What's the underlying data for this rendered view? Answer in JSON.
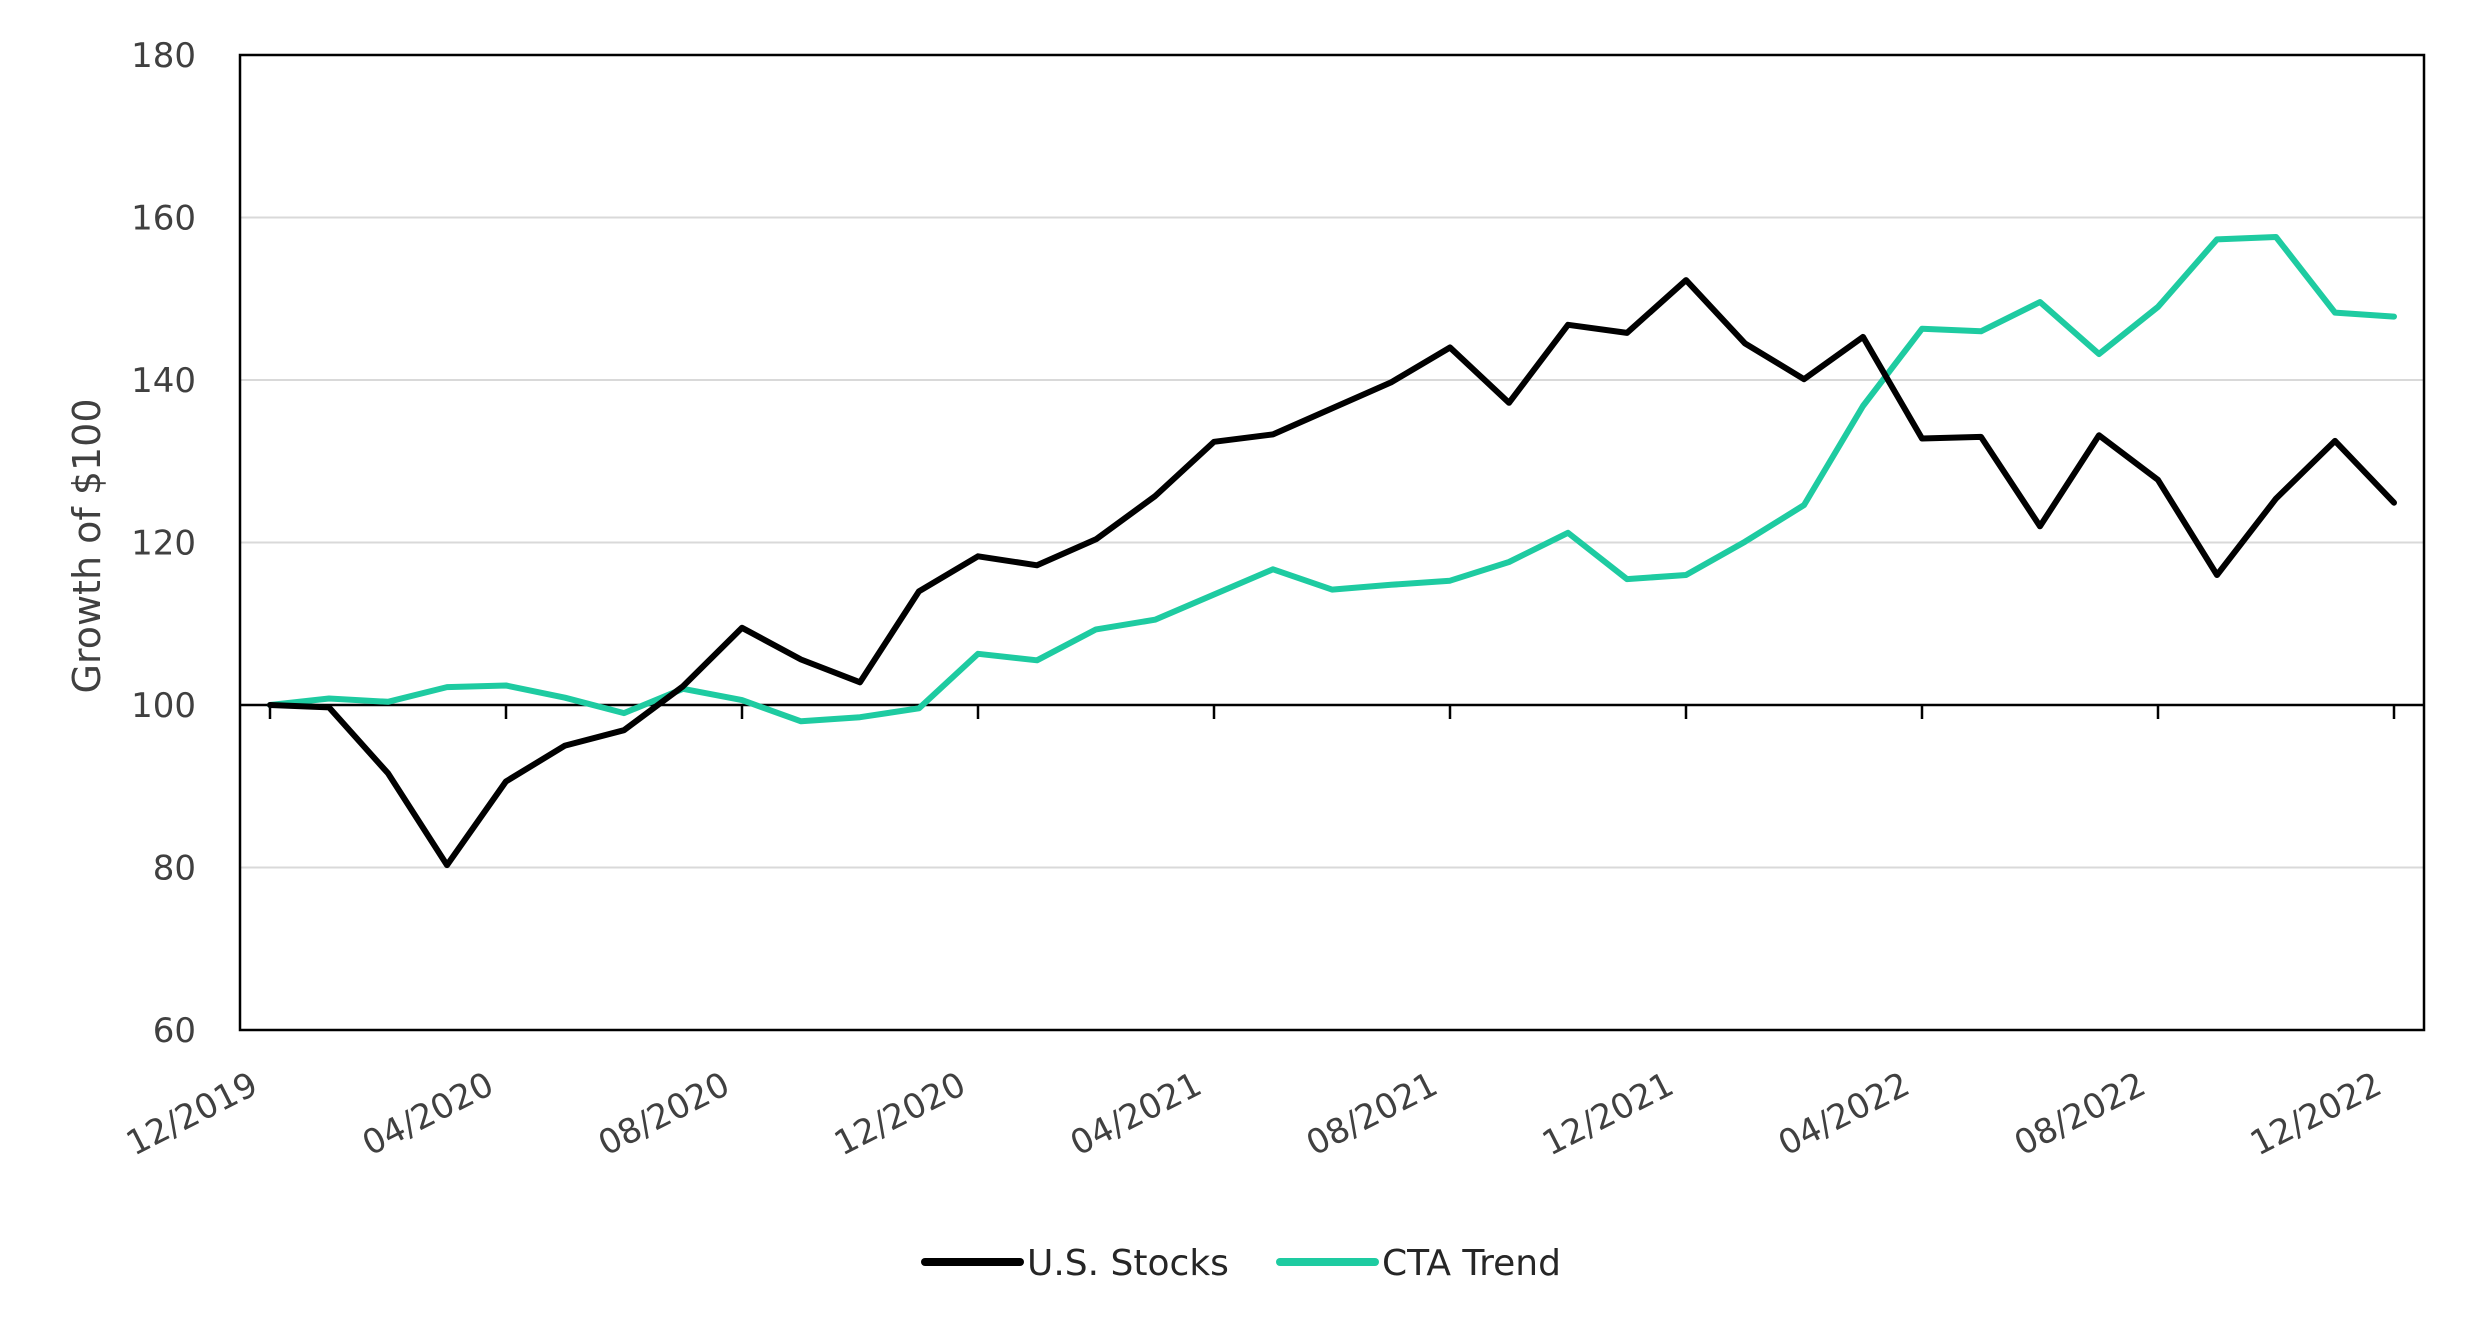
{
  "chart_data": {
    "type": "line",
    "title": "",
    "xlabel": "",
    "ylabel": "Growth of $100",
    "ylim": [
      60,
      180
    ],
    "yticks": [
      60,
      80,
      100,
      120,
      140,
      160,
      180
    ],
    "xtick_labels": [
      "12/2019",
      "04/2020",
      "08/2020",
      "12/2020",
      "04/2021",
      "08/2021",
      "12/2021",
      "04/2022",
      "08/2022",
      "12/2022"
    ],
    "x": [
      "12/2019",
      "01/2020",
      "02/2020",
      "03/2020",
      "04/2020",
      "05/2020",
      "06/2020",
      "07/2020",
      "08/2020",
      "09/2020",
      "10/2020",
      "11/2020",
      "12/2020",
      "01/2021",
      "02/2021",
      "03/2021",
      "04/2021",
      "05/2021",
      "06/2021",
      "07/2021",
      "08/2021",
      "09/2021",
      "10/2021",
      "11/2021",
      "12/2021",
      "01/2022",
      "02/2022",
      "03/2022",
      "04/2022",
      "05/2022",
      "06/2022",
      "07/2022",
      "08/2022",
      "09/2022",
      "10/2022",
      "11/2022",
      "12/2022"
    ],
    "grid": true,
    "baseline": 100,
    "legend_position": "bottom-center",
    "series": [
      {
        "name": "U.S. Stocks",
        "color": "#000000",
        "values": [
          100,
          99.7,
          91.6,
          80.3,
          90.6,
          95.0,
          96.9,
          102.3,
          109.5,
          105.6,
          102.8,
          114.0,
          118.3,
          117.2,
          120.4,
          125.7,
          132.4,
          133.3,
          136.5,
          139.7,
          144.0,
          137.2,
          146.8,
          145.8,
          152.3,
          144.5,
          140.1,
          145.3,
          132.8,
          133.0,
          122.0,
          133.2,
          127.7,
          116.0,
          125.4,
          132.5,
          124.9
        ]
      },
      {
        "name": "CTA Trend",
        "color": "#1ECBA1",
        "values": [
          100,
          100.8,
          100.4,
          102.2,
          102.4,
          100.9,
          99.0,
          102.0,
          100.6,
          98.0,
          98.5,
          99.6,
          106.3,
          105.5,
          109.3,
          110.5,
          113.6,
          116.7,
          114.2,
          114.8,
          115.3,
          117.6,
          121.2,
          115.5,
          116.0,
          120.1,
          124.6,
          136.8,
          146.3,
          146.0,
          149.6,
          143.2,
          149.0,
          157.3,
          157.6,
          148.3,
          147.8
        ]
      }
    ]
  }
}
